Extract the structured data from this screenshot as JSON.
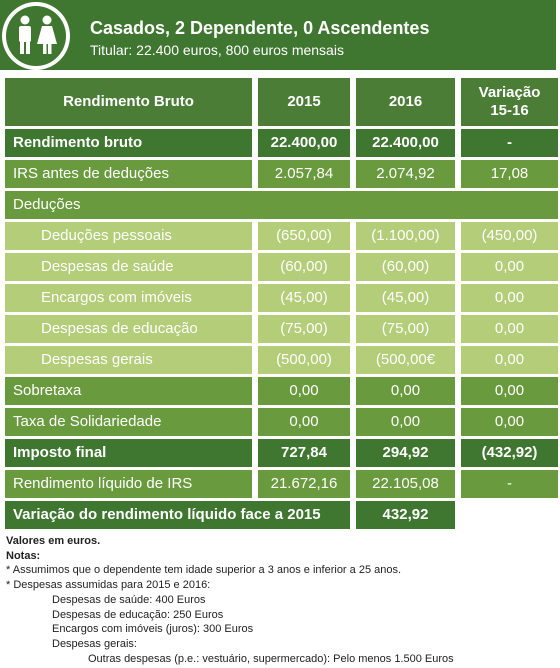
{
  "header": {
    "title": "Casados, 2 Dependente, 0 Ascendentes",
    "subtitle": "Titular: 22.400 euros, 800 euros mensais"
  },
  "table": {
    "columns": [
      "Rendimento Bruto",
      "2015",
      "2016",
      "Variação\n15-16"
    ],
    "rows": [
      [
        "Rendimento bruto",
        "22.400,00",
        "22.400,00",
        "-"
      ],
      [
        "IRS antes de deduções",
        "2.057,84",
        "2.074,92",
        "17,08"
      ],
      [
        "Deduções"
      ],
      [
        "Deduções pessoais",
        "(650,00)",
        "(1.100,00)",
        "(450,00)"
      ],
      [
        "Despesas de saúde",
        "(60,00)",
        "(60,00)",
        "0,00"
      ],
      [
        "Encargos com imóveis",
        "(45,00)",
        "(45,00)",
        "0,00"
      ],
      [
        "Despesas de educação",
        "(75,00)",
        "(75,00)",
        "0,00"
      ],
      [
        "Despesas gerais",
        "(500,00)",
        "(500,00€",
        "0,00"
      ],
      [
        "Sobretaxa",
        "0,00",
        "0,00",
        "0,00"
      ],
      [
        "Taxa de Solidariedade",
        "0,00",
        "0,00",
        "0,00"
      ],
      [
        "Imposto final",
        "727,84",
        "294,92",
        "(432,92)"
      ],
      [
        "Rendimento líquido de IRS",
        "21.672,16",
        "22.105,08",
        "-"
      ],
      [
        "Variação do rendimento líquido face a 2015",
        "432,92"
      ]
    ]
  },
  "notes": [
    "Valores em euros.",
    "Notas:",
    "* Assumimos que o dependente tem idade superior a 3 anos e inferior a 25 anos.",
    "* Despesas assumidas para 2015 e 2016:",
    "Despesas de saúde: 400 Euros",
    "Despesas de educação: 250 Euros",
    "Encargos com imóveis (juros): 300 Euros",
    "Despesas gerais:",
    "Outras despesas (p.e.: vestuário, supermercado): Pelo menos 1.500 Euros"
  ]
}
